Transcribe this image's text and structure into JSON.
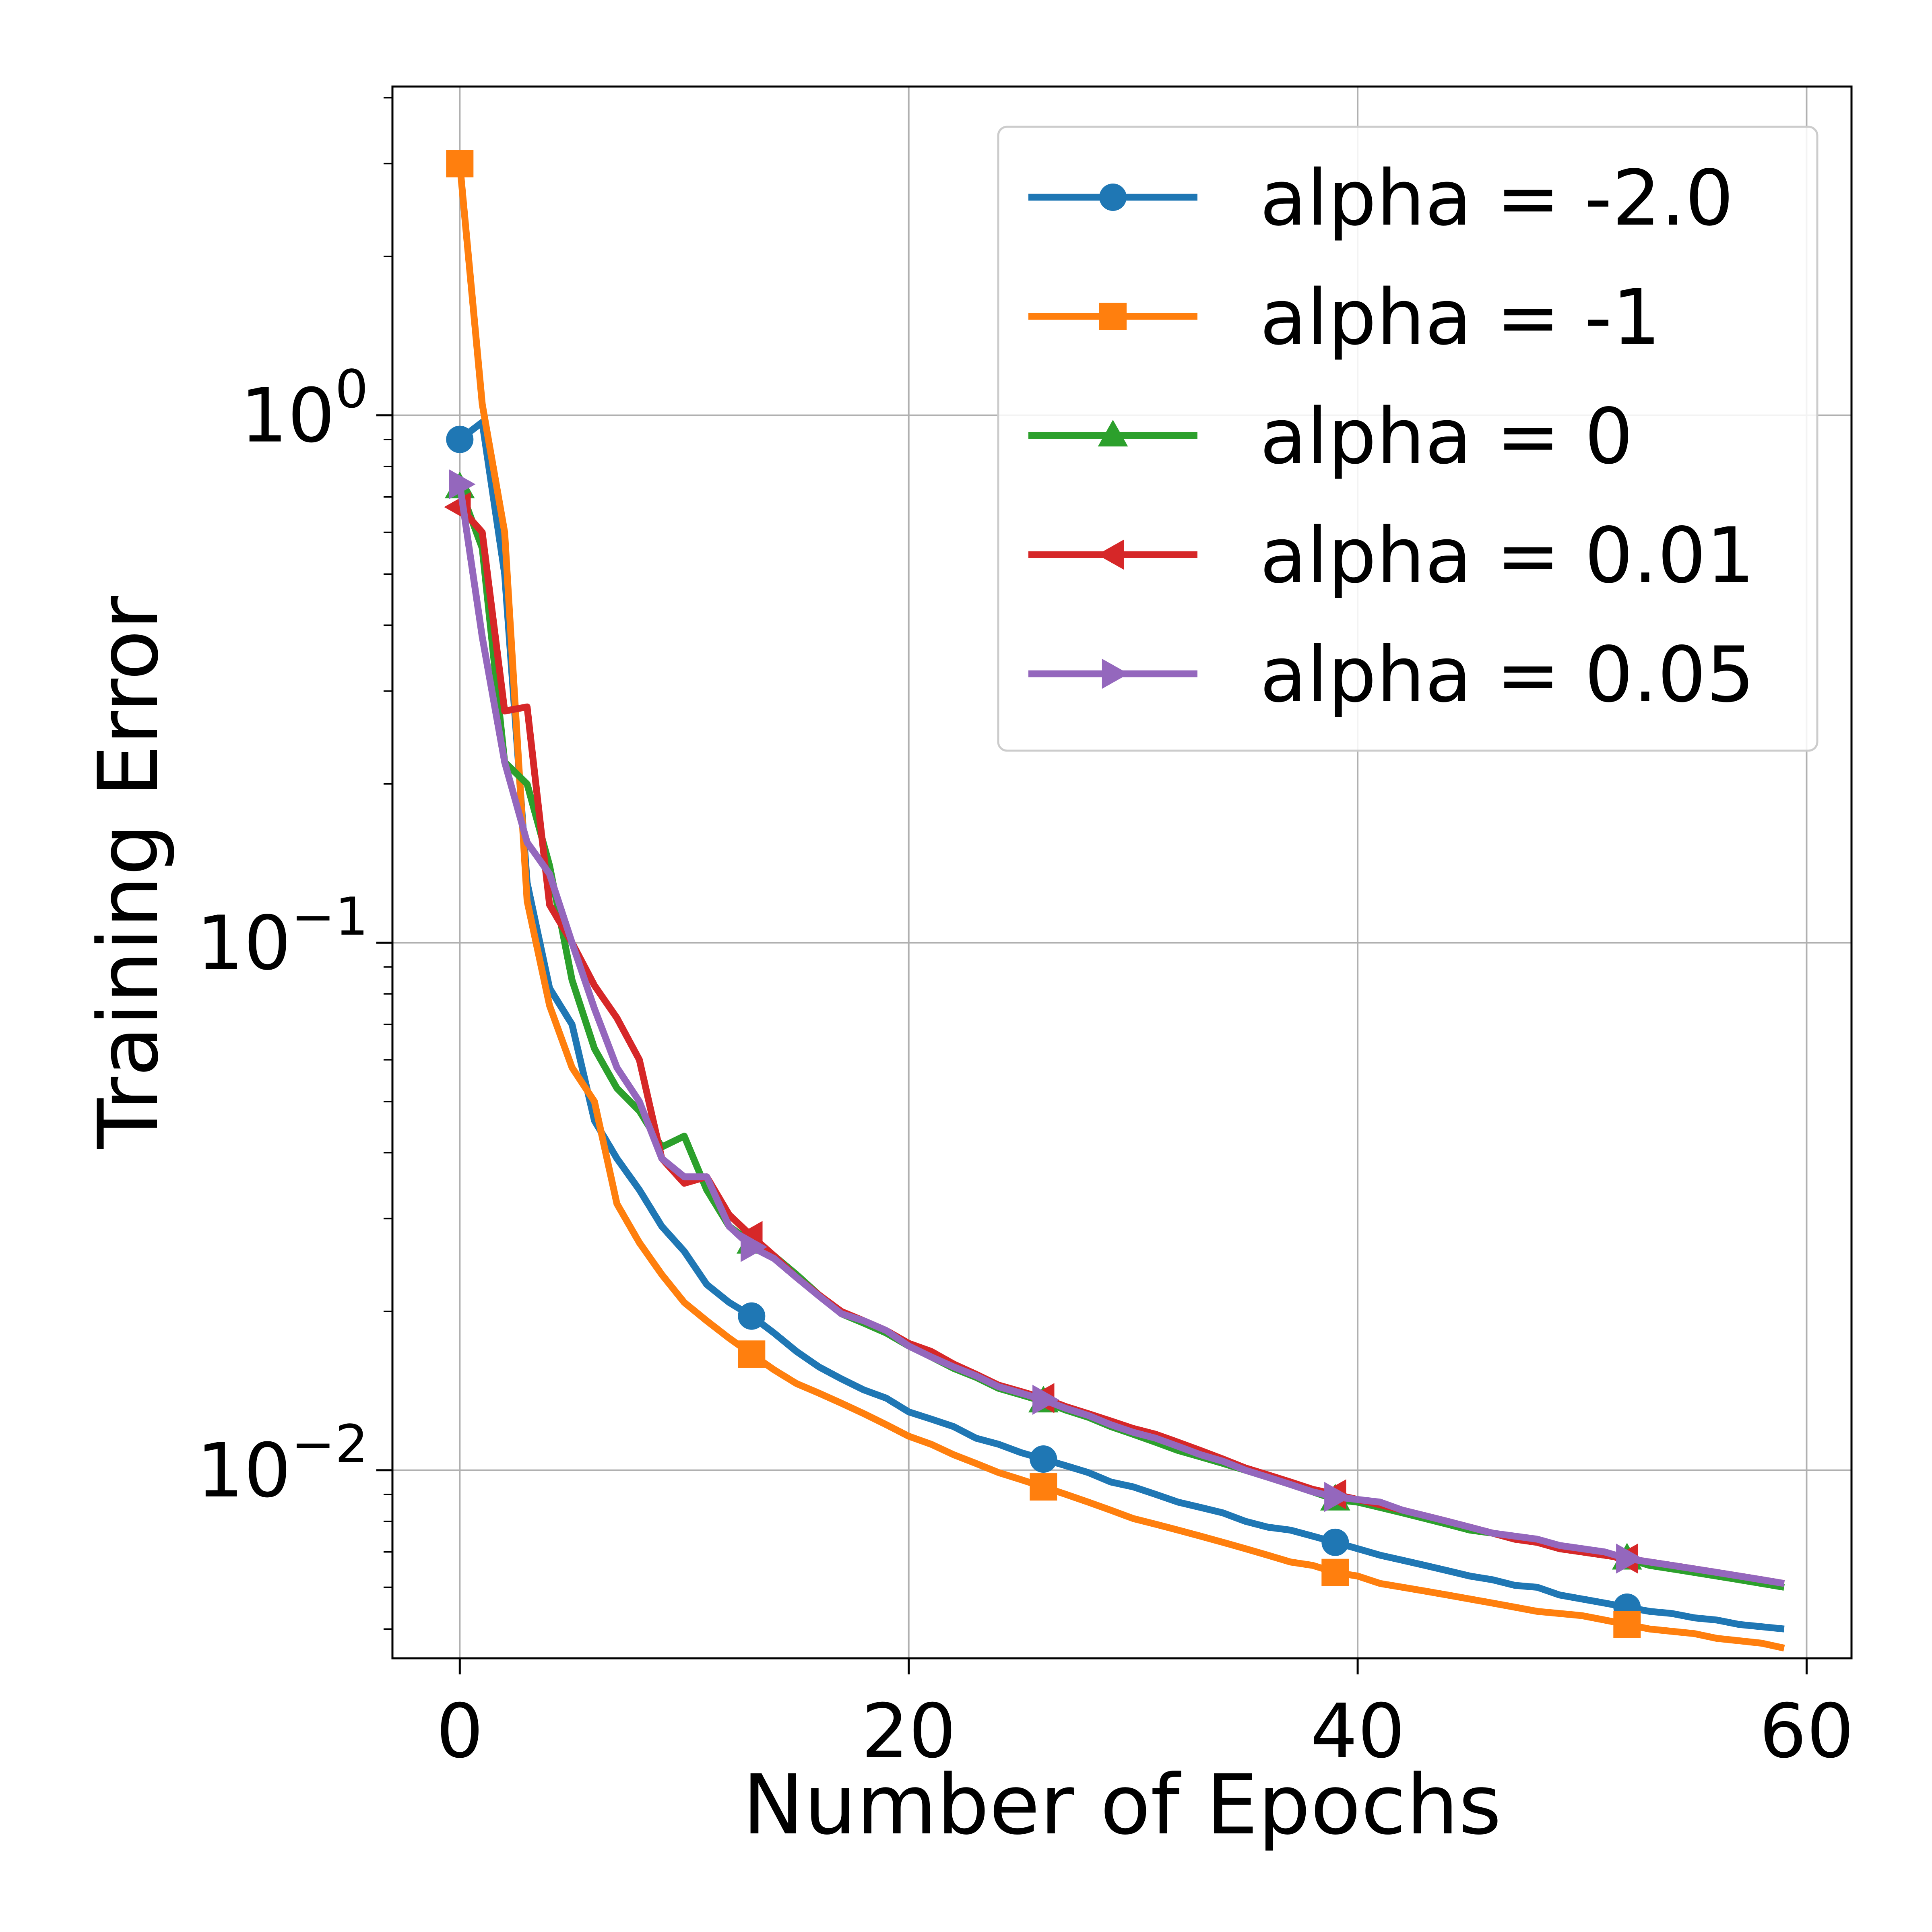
{
  "chart_data": {
    "type": "line",
    "title": "",
    "xlabel": "Number of Epochs",
    "ylabel": "Training Error",
    "xscale": "linear",
    "yscale": "log",
    "xlim": [
      -3,
      62
    ],
    "ylim": [
      0.0044,
      4.2
    ],
    "grid": true,
    "legend_position": "top-right",
    "x_ticks": [
      {
        "value": 0,
        "label": "0"
      },
      {
        "value": 20,
        "label": "20"
      },
      {
        "value": 40,
        "label": "40"
      },
      {
        "value": 60,
        "label": "60"
      }
    ],
    "y_ticks": [
      {
        "value": 1,
        "base": "10",
        "exp": "0"
      },
      {
        "value": 0.1,
        "base": "10",
        "exp": "−1"
      },
      {
        "value": 0.01,
        "base": "10",
        "exp": "−2"
      }
    ],
    "marker_every": [
      0,
      13,
      26,
      39,
      52
    ],
    "series": [
      {
        "name": "alpha = -2.0",
        "color": "#1f77b4",
        "marker": "circle",
        "x": [
          0,
          1,
          2,
          3,
          4,
          5,
          6,
          7,
          8,
          9,
          10,
          11,
          12,
          13,
          14,
          15,
          16,
          17,
          18,
          19,
          20,
          21,
          22,
          23,
          24,
          25,
          26,
          27,
          28,
          29,
          30,
          31,
          32,
          33,
          34,
          35,
          36,
          37,
          38,
          39,
          40,
          41,
          42,
          43,
          44,
          45,
          46,
          47,
          48,
          49,
          50,
          51,
          52,
          53,
          54,
          55,
          56,
          57,
          58,
          59
        ],
        "values": [
          0.9,
          0.97,
          0.5,
          0.13,
          0.082,
          0.07,
          0.046,
          0.039,
          0.034,
          0.029,
          0.026,
          0.0225,
          0.0208,
          0.0196,
          0.0182,
          0.0168,
          0.0157,
          0.0149,
          0.0142,
          0.0137,
          0.0129,
          0.0125,
          0.0121,
          0.0115,
          0.0112,
          0.0108,
          0.0105,
          0.0102,
          0.0099,
          0.0095,
          0.0093,
          0.009,
          0.0087,
          0.0085,
          0.0083,
          0.008,
          0.0078,
          0.0077,
          0.0075,
          0.0073,
          0.0071,
          0.0069,
          0.00675,
          0.0066,
          0.00645,
          0.0063,
          0.0062,
          0.00605,
          0.006,
          0.0058,
          0.0057,
          0.0056,
          0.0055,
          0.0054,
          0.00535,
          0.00525,
          0.0052,
          0.0051,
          0.00505,
          0.005
        ]
      },
      {
        "name": "alpha = -1",
        "color": "#ff7f0e",
        "marker": "square",
        "x": [
          0,
          1,
          2,
          3,
          4,
          5,
          6,
          7,
          8,
          9,
          10,
          11,
          12,
          13,
          14,
          15,
          16,
          17,
          18,
          19,
          20,
          21,
          22,
          23,
          24,
          25,
          26,
          27,
          28,
          29,
          30,
          31,
          32,
          33,
          34,
          35,
          36,
          37,
          38,
          39,
          40,
          41,
          42,
          43,
          44,
          45,
          46,
          47,
          48,
          49,
          50,
          51,
          52,
          53,
          54,
          55,
          56,
          57,
          58,
          59
        ],
        "values": [
          3.0,
          1.05,
          0.6,
          0.12,
          0.076,
          0.058,
          0.05,
          0.032,
          0.027,
          0.0235,
          0.0208,
          0.0192,
          0.0178,
          0.0166,
          0.0155,
          0.0146,
          0.014,
          0.0134,
          0.0128,
          0.0122,
          0.0116,
          0.0112,
          0.0107,
          0.0103,
          0.0099,
          0.0096,
          0.0093,
          0.009,
          0.0087,
          0.0084,
          0.0081,
          0.0079,
          0.0077,
          0.0075,
          0.0073,
          0.0071,
          0.0069,
          0.0067,
          0.0066,
          0.0064,
          0.0063,
          0.0061,
          0.006,
          0.0059,
          0.0058,
          0.0057,
          0.0056,
          0.0055,
          0.0054,
          0.00535,
          0.0053,
          0.0052,
          0.0051,
          0.005,
          0.00495,
          0.0049,
          0.0048,
          0.00475,
          0.0047,
          0.0046
        ]
      },
      {
        "name": "alpha = 0",
        "color": "#2ca02c",
        "marker": "triangle-up",
        "x": [
          0,
          1,
          2,
          3,
          4,
          5,
          6,
          7,
          8,
          9,
          10,
          11,
          12,
          13,
          14,
          15,
          16,
          17,
          18,
          19,
          20,
          21,
          22,
          23,
          24,
          25,
          26,
          27,
          28,
          29,
          30,
          31,
          32,
          33,
          34,
          35,
          36,
          37,
          38,
          39,
          40,
          41,
          42,
          43,
          44,
          45,
          46,
          47,
          48,
          49,
          50,
          51,
          52,
          53,
          54,
          55,
          56,
          57,
          58,
          59
        ],
        "values": [
          0.73,
          0.56,
          0.22,
          0.2,
          0.14,
          0.085,
          0.063,
          0.053,
          0.048,
          0.041,
          0.043,
          0.034,
          0.029,
          0.027,
          0.0255,
          0.0235,
          0.0215,
          0.0198,
          0.019,
          0.0182,
          0.0172,
          0.0164,
          0.0156,
          0.015,
          0.0143,
          0.0139,
          0.0135,
          0.013,
          0.0126,
          0.0121,
          0.0117,
          0.0113,
          0.0109,
          0.0106,
          0.0103,
          0.01,
          0.0097,
          0.0094,
          0.0091,
          0.0088,
          0.0087,
          0.0085,
          0.0083,
          0.0081,
          0.0079,
          0.0077,
          0.0076,
          0.0074,
          0.0073,
          0.0071,
          0.007,
          0.0069,
          0.0068,
          0.0066,
          0.0065,
          0.0064,
          0.0063,
          0.0062,
          0.0061,
          0.006
        ]
      },
      {
        "name": "alpha = 0.01",
        "color": "#d62728",
        "marker": "triangle-left",
        "x": [
          0,
          1,
          2,
          3,
          4,
          5,
          6,
          7,
          8,
          9,
          10,
          11,
          12,
          13,
          14,
          15,
          16,
          17,
          18,
          19,
          20,
          21,
          22,
          23,
          24,
          25,
          26,
          27,
          28,
          29,
          30,
          31,
          32,
          33,
          34,
          35,
          36,
          37,
          38,
          39,
          40,
          41,
          42,
          43,
          44,
          45,
          46,
          47,
          48,
          49,
          50,
          51,
          52,
          53,
          54,
          55,
          56,
          57,
          58,
          59
        ],
        "values": [
          0.67,
          0.6,
          0.275,
          0.28,
          0.118,
          0.1,
          0.083,
          0.072,
          0.06,
          0.039,
          0.035,
          0.036,
          0.0305,
          0.0278,
          0.0255,
          0.0232,
          0.0215,
          0.02,
          0.0192,
          0.0184,
          0.0174,
          0.0168,
          0.0159,
          0.0152,
          0.0145,
          0.0141,
          0.0137,
          0.0132,
          0.0128,
          0.0124,
          0.012,
          0.0117,
          0.0113,
          0.0109,
          0.0105,
          0.0101,
          0.0098,
          0.0095,
          0.0092,
          0.009,
          0.0088,
          0.0086,
          0.0084,
          0.0082,
          0.008,
          0.0078,
          0.0076,
          0.0074,
          0.0073,
          0.0071,
          0.007,
          0.0069,
          0.0068,
          0.0067,
          0.0066,
          0.0065,
          0.0064,
          0.0063,
          0.0062,
          0.0061
        ]
      },
      {
        "name": "alpha = 0.05",
        "color": "#9467bd",
        "marker": "triangle-right",
        "x": [
          0,
          1,
          2,
          3,
          4,
          5,
          6,
          7,
          8,
          9,
          10,
          11,
          12,
          13,
          14,
          15,
          16,
          17,
          18,
          19,
          20,
          21,
          22,
          23,
          24,
          25,
          26,
          27,
          28,
          29,
          30,
          31,
          32,
          33,
          34,
          35,
          36,
          37,
          38,
          39,
          40,
          41,
          42,
          43,
          44,
          45,
          46,
          47,
          48,
          49,
          50,
          51,
          52,
          53,
          54,
          55,
          56,
          57,
          58,
          59
        ],
        "values": [
          0.74,
          0.38,
          0.22,
          0.155,
          0.135,
          0.1,
          0.075,
          0.058,
          0.05,
          0.039,
          0.036,
          0.036,
          0.029,
          0.0265,
          0.0252,
          0.0232,
          0.0214,
          0.0198,
          0.0192,
          0.0184,
          0.0172,
          0.0164,
          0.0157,
          0.0151,
          0.0144,
          0.014,
          0.0136,
          0.0131,
          0.0127,
          0.0122,
          0.0118,
          0.0115,
          0.0111,
          0.0107,
          0.0104,
          0.01,
          0.0097,
          0.0094,
          0.0091,
          0.0089,
          0.0088,
          0.0087,
          0.0084,
          0.0082,
          0.008,
          0.0078,
          0.0076,
          0.0075,
          0.0074,
          0.0072,
          0.0071,
          0.007,
          0.0068,
          0.0067,
          0.0066,
          0.0065,
          0.0064,
          0.0063,
          0.0062,
          0.0061
        ]
      }
    ]
  }
}
